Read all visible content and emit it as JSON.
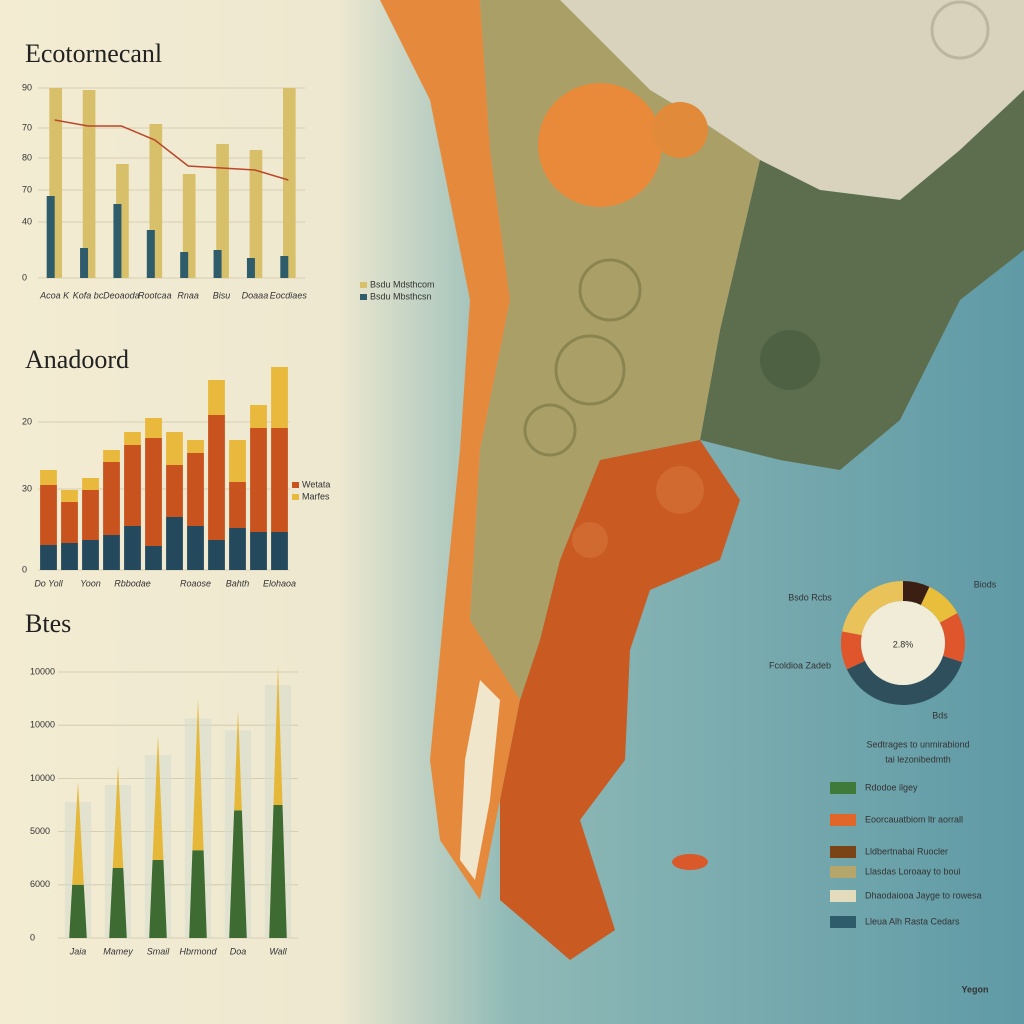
{
  "chart_data": [
    {
      "type": "bar",
      "title": "Ecotornecanl",
      "categories": [
        "Acoa K",
        "Kofa bc",
        "Deoaoda",
        "Rootcaa",
        "Rnaa",
        "Bisu",
        "Doaaa",
        "Eocdiaes"
      ],
      "series": [
        {
          "name": "Bsdu Mdsthcom",
          "color": "#d8c06a",
          "values": [
            95,
            94,
            57,
            77,
            52,
            67,
            64,
            95
          ]
        },
        {
          "name": "Bsdu Mbsthcsn",
          "color": "#2f5c6a",
          "values": [
            41,
            15,
            37,
            24,
            13,
            14,
            10,
            11
          ]
        },
        {
          "type": "line",
          "color": "#b9472a",
          "values": [
            79,
            76,
            76,
            69,
            56,
            55,
            54,
            49
          ]
        }
      ],
      "ylim": [
        0,
        100
      ],
      "yticks": [
        {
          "value": 95,
          "label": "90"
        },
        {
          "value": 75,
          "label": "70"
        },
        {
          "value": 60,
          "label": "80"
        },
        {
          "value": 44,
          "label": "70"
        },
        {
          "value": 28,
          "label": "40"
        },
        0
      ],
      "grid": true
    },
    {
      "type": "stacked_bar",
      "title": "Anadoord",
      "categories": [
        "Do Yoll",
        null,
        "Yoon",
        null,
        "Rbbodae",
        null,
        null,
        "Roaose",
        null,
        "Bahth",
        null,
        "Elohaoa"
      ],
      "series": [
        {
          "color": "#24485c",
          "values": [
            12.5,
            13.5,
            15,
            17.5,
            22,
            12,
            26.5,
            22,
            15,
            21,
            19,
            19
          ]
        },
        {
          "name": "Wetata",
          "color": "#c9531f",
          "values": [
            30,
            20.5,
            25,
            36.5,
            40.5,
            54,
            26,
            36.5,
            62.5,
            23,
            52,
            52
          ]
        },
        {
          "name": "Marfes",
          "color": "#e8b93c",
          "values": [
            7.5,
            6,
            6,
            6,
            6.5,
            10,
            16.5,
            6.5,
            17.5,
            21,
            11.5,
            30.5
          ]
        }
      ],
      "ylim": [
        0,
        100
      ],
      "yticks": [
        {
          "value": 74,
          "label": "20"
        },
        {
          "value": 40.5,
          "label": "30"
        },
        0
      ],
      "grid": true
    },
    {
      "type": "cone",
      "title": "Btes",
      "categories": [
        "Jaia",
        "Mamey",
        "Smail",
        "Hbrmond",
        "Doa",
        "Wall"
      ],
      "series": [
        {
          "color": "#3d6b32",
          "values": [
            20,
            26.3,
            29.3,
            33,
            48,
            50
          ]
        },
        {
          "color": "#e6b83a",
          "values": [
            38.7,
            38.7,
            47,
            57,
            37.6,
            52.6
          ]
        }
      ],
      "ylim": [
        0,
        100
      ],
      "yticks": [
        {
          "value": 100,
          "label": "10000"
        },
        {
          "value": 80,
          "label": "10000"
        },
        {
          "value": 60,
          "label": "10000"
        },
        {
          "value": 40,
          "label": "5000"
        },
        {
          "value": 20,
          "label": "6000"
        },
        0
      ],
      "grid": true
    },
    {
      "type": "donut",
      "center_label": "2.8%",
      "values": [
        7,
        10,
        13,
        38,
        10,
        22
      ],
      "colors": [
        "#3a1f12",
        "#e8be3a",
        "#e0562c",
        "#2f4f5c",
        "#e0562c",
        "#e9c35a"
      ],
      "annotations": [
        "Bsdo Rcbs",
        "Biods",
        "Fcoldioa Zadeb",
        "Bds"
      ]
    }
  ],
  "legend": {
    "title": [
      "Sedtrages to unmirabiond",
      "tai lezonibedmth"
    ],
    "items": [
      {
        "label": "Rdodoe ilgey",
        "color": "#3f7a3a"
      },
      {
        "label": "Eoorcauatbiom ltr aorrall",
        "color": "#e0662a"
      },
      {
        "label": "Lldbertnabai Ruocler",
        "color": "#7a4417"
      },
      {
        "label": "Llasdas Loroaay to boui",
        "color": "#b5a76c"
      },
      {
        "label": "Dhaodaiooa Jayge to rowesa",
        "color": "#e2dcbc"
      },
      {
        "label": "Lleua Alh Rasta Cedars",
        "color": "#2f5c6a"
      }
    ]
  },
  "footer": "Yegon"
}
